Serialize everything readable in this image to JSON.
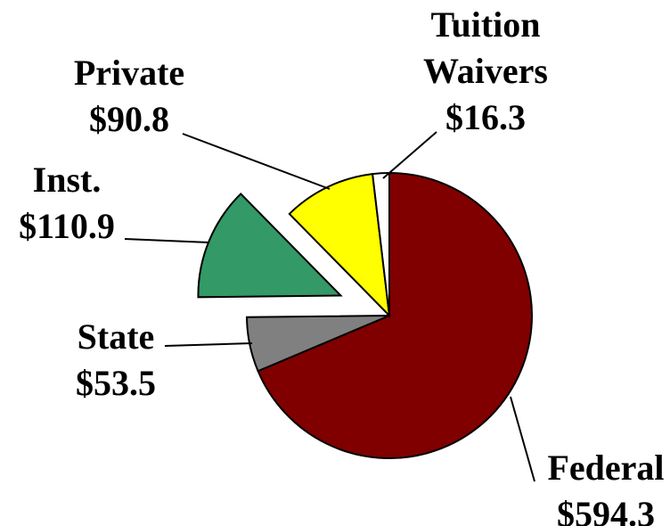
{
  "chart_data": {
    "type": "pie",
    "categories": [
      "Federal",
      "State",
      "Inst.",
      "Private",
      "Tuition Waivers"
    ],
    "values": [
      594.3,
      53.5,
      110.9,
      90.8,
      16.3
    ],
    "value_labels": [
      "$594.3",
      "$53.5",
      "$110.9",
      "$90.8",
      "$16.3"
    ],
    "colors": [
      "#800000",
      "#808080",
      "#339966",
      "#ffff00",
      "#ffffff"
    ],
    "exploded": [
      false,
      false,
      true,
      false,
      false
    ]
  }
}
